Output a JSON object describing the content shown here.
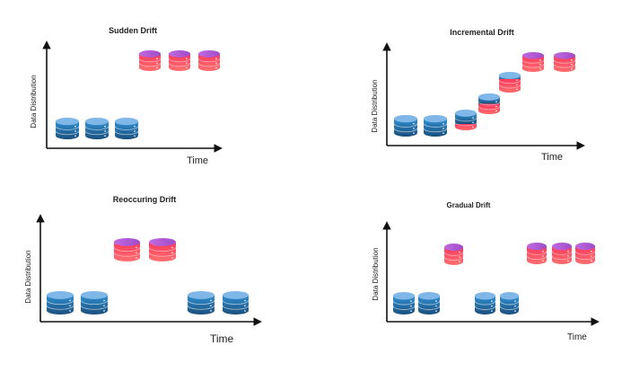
{
  "panels": [
    {
      "id": "sudden",
      "title": "Sudden Drift",
      "ylabel": "Data Distribution",
      "xlabel": "Time",
      "cylinders": [
        {
          "kind": "blue"
        },
        {
          "kind": "blue"
        },
        {
          "kind": "blue"
        },
        {
          "kind": "red"
        },
        {
          "kind": "red"
        },
        {
          "kind": "red"
        }
      ]
    },
    {
      "id": "incremental",
      "title": "Incremental Drift",
      "ylabel": "Data Distribution",
      "xlabel": "Time",
      "cylinders": [
        {
          "kind": "blue"
        },
        {
          "kind": "blue"
        },
        {
          "kind": "mix1"
        },
        {
          "kind": "mix2"
        },
        {
          "kind": "mix3"
        },
        {
          "kind": "red"
        },
        {
          "kind": "red"
        }
      ]
    },
    {
      "id": "reoccuring",
      "title": "Reoccuring Drift",
      "ylabel": "Data Distribution",
      "xlabel": "Time",
      "cylinders": [
        {
          "kind": "blue"
        },
        {
          "kind": "blue"
        },
        {
          "kind": "red"
        },
        {
          "kind": "red"
        },
        {
          "kind": "blue"
        },
        {
          "kind": "blue"
        }
      ]
    },
    {
      "id": "gradual",
      "title": "Gradual Drift",
      "ylabel": "Data Distribution",
      "xlabel": "Time",
      "cylinders": [
        {
          "kind": "blue"
        },
        {
          "kind": "blue"
        },
        {
          "kind": "red"
        },
        {
          "kind": "blue"
        },
        {
          "kind": "blue"
        },
        {
          "kind": "red"
        },
        {
          "kind": "red"
        },
        {
          "kind": "red"
        }
      ]
    }
  ],
  "colors": {
    "blue_top": "#7fb7e8",
    "blue_body_top": "#2f8fd0",
    "blue_body_bottom": "#1b4f7d",
    "red_top": "#b561d6",
    "red_body_top": "#ff3a5c",
    "red_body_bottom": "#ff6a6a",
    "axis": "#111111"
  }
}
